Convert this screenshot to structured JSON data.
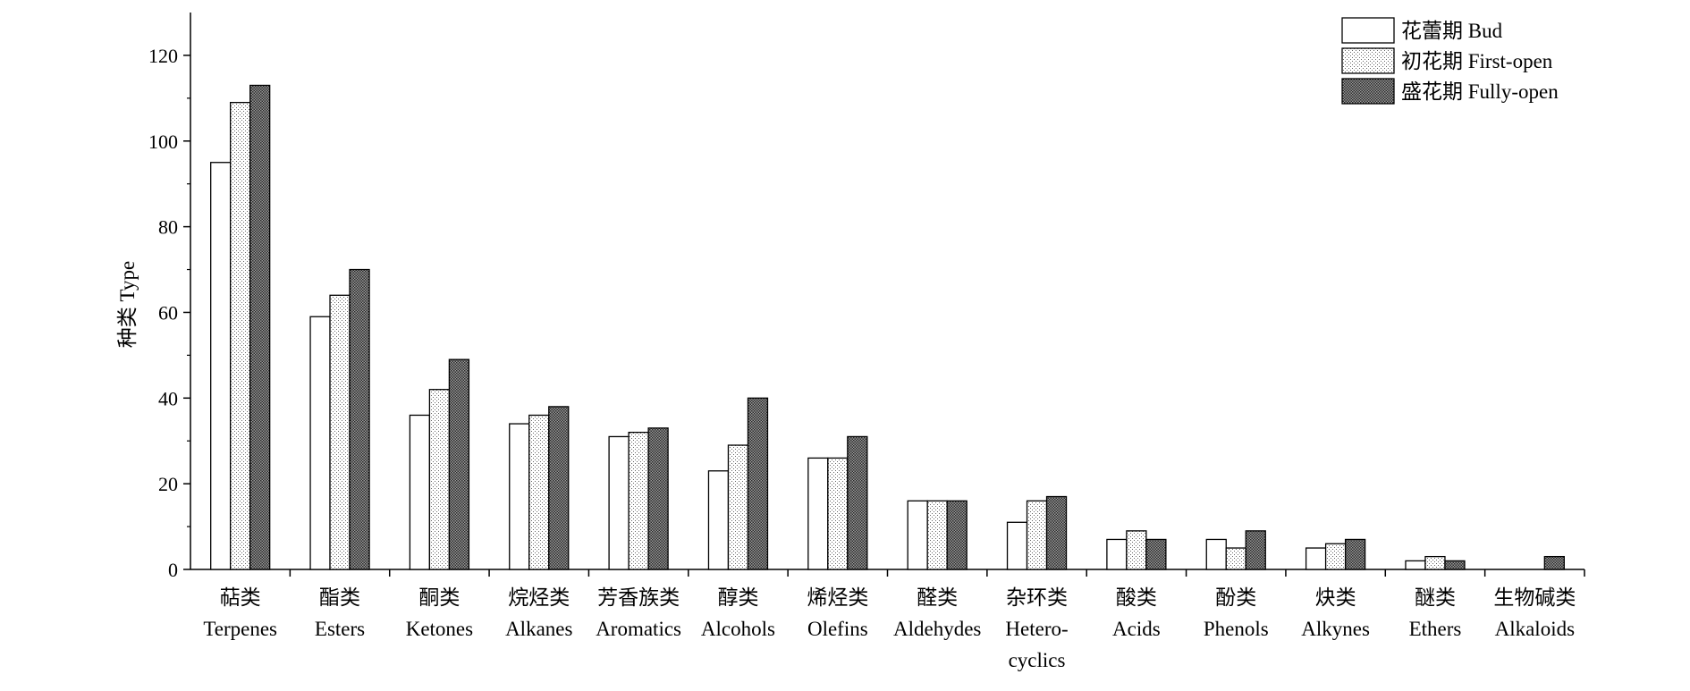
{
  "chart_data": {
    "type": "bar",
    "ylabel": "种类 Type",
    "xlabel": "",
    "ylim": [
      0,
      130
    ],
    "yticks": [
      0,
      20,
      40,
      60,
      80,
      100,
      120
    ],
    "grid": false,
    "legend_position": "top-right",
    "categories": [
      [
        "萜类",
        "Terpenes"
      ],
      [
        "酯类",
        "Esters"
      ],
      [
        "酮类",
        "Ketones"
      ],
      [
        "烷烃类",
        "Alkanes"
      ],
      [
        "芳香族类",
        "Aromatics"
      ],
      [
        "醇类",
        "Alcohols"
      ],
      [
        "烯烃类",
        "Olefins"
      ],
      [
        "醛类",
        "Aldehydes"
      ],
      [
        "杂环类",
        "Hetero-",
        "cyclics"
      ],
      [
        "酸类",
        "Acids"
      ],
      [
        "酚类",
        "Phenols"
      ],
      [
        "炔类",
        "Alkynes"
      ],
      [
        "醚类",
        "Ethers"
      ],
      [
        "生物碱类",
        "Alkaloids"
      ]
    ],
    "series": [
      {
        "name": "花蕾期 Bud",
        "pattern": "white",
        "values": [
          95,
          59,
          36,
          34,
          31,
          23,
          26,
          16,
          11,
          7,
          7,
          5,
          2,
          0
        ]
      },
      {
        "name": "初花期 First-open",
        "pattern": "light-dots",
        "values": [
          109,
          64,
          42,
          36,
          32,
          29,
          26,
          16,
          16,
          9,
          5,
          6,
          3,
          0
        ]
      },
      {
        "name": "盛花期 Fully-open",
        "pattern": "dense-crosshatch",
        "values": [
          113,
          70,
          49,
          38,
          33,
          40,
          31,
          16,
          17,
          7,
          9,
          7,
          2,
          3
        ]
      }
    ]
  }
}
